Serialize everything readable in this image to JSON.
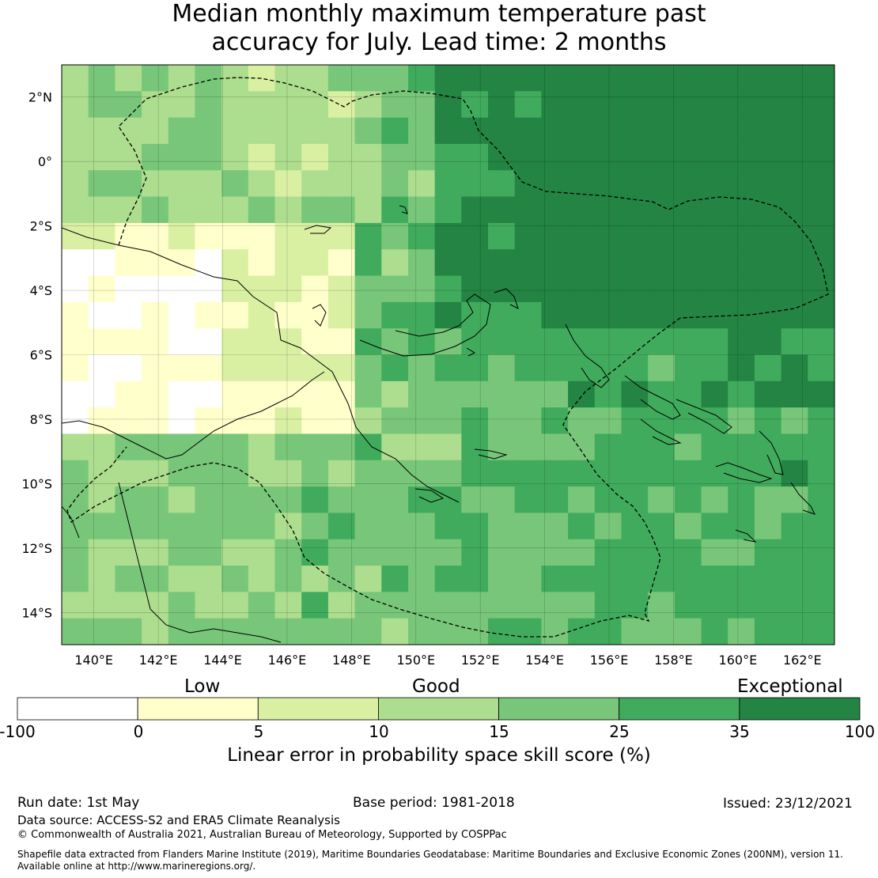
{
  "title": {
    "line1": "Median monthly maximum temperature past",
    "line2": "accuracy for July. Lead time: 2 months"
  },
  "map": {
    "lon_range": [
      139,
      163
    ],
    "lat_range": [
      -15,
      3
    ],
    "lon_ticks": [
      "140°E",
      "142°E",
      "144°E",
      "146°E",
      "148°E",
      "150°E",
      "152°E",
      "154°E",
      "156°E",
      "158°E",
      "160°E",
      "162°E"
    ],
    "lat_ticks": [
      "2°N",
      "0°",
      "2°S",
      "4°S",
      "6°S",
      "8°S",
      "10°S",
      "12°S",
      "14°S"
    ]
  },
  "colorbar": {
    "categories": [
      "Low",
      "Good",
      "Exceptional"
    ],
    "tick_labels": [
      "-100",
      "0",
      "5",
      "10",
      "15",
      "25",
      "35",
      "100"
    ],
    "colors": [
      "#ffffff",
      "#ffffcc",
      "#d9f0a3",
      "#addd8e",
      "#78c679",
      "#41ab5d",
      "#238443"
    ],
    "label": "Linear error in probability space skill score (%)"
  },
  "footer": {
    "run_date": "Run date: 1st May",
    "base_period": "Base period: 1981-2018",
    "issued": "Issued: 23/12/2021",
    "data_source": "Data source: ACCESS-S2 and ERA5 Climate Reanalysis",
    "copyright": "© Commonwealth of Australia 2021, Australian Bureau of Meteorology, Supported by COSPPac",
    "shapefile_1": "Shapefile data extracted from Flanders Marine Institute (2019), Maritime Boundaries Geodatabase: Maritime Boundaries and Exclusive Economic Zones (200NM), version 11.",
    "shapefile_2": "Available online at http://www.marineregions.org/."
  }
}
